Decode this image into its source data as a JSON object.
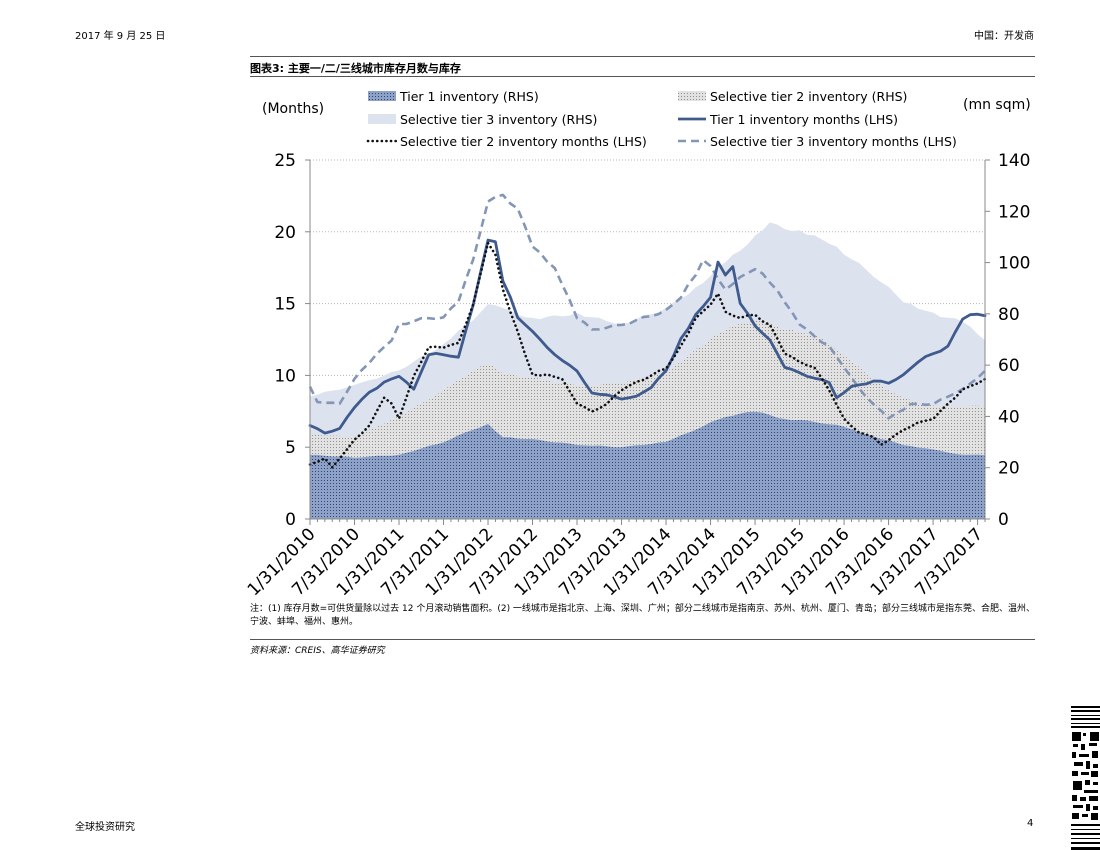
{
  "header": {
    "date": "2017 年 9 月 25 日",
    "section": "中国：开发商"
  },
  "figure_title": "图表3: 主要一/二/三线城市库存月数与库存",
  "chart_data": {
    "type": "line",
    "title": "主要一/二/三线城市库存月数与库存",
    "ylabel_left": "(Months)",
    "ylabel_right": "(mn sqm)",
    "ylim_left": [
      0,
      25
    ],
    "ylim_right": [
      0,
      140
    ],
    "yticks_left": [
      "25",
      "20",
      "15",
      "10",
      "5",
      "0"
    ],
    "yticks_right": [
      "140",
      "120",
      "100",
      "80",
      "60",
      "40",
      "20",
      "0"
    ],
    "x_start": "2010-01",
    "x_end": "2017-08",
    "xtick_labels": [
      "1/31/2010",
      "7/31/2010",
      "1/31/2011",
      "7/31/2011",
      "1/31/2012",
      "7/31/2012",
      "1/31/2013",
      "7/31/2013",
      "1/31/2014",
      "7/31/2014",
      "1/31/2015",
      "7/31/2015",
      "1/31/2016",
      "7/31/2016",
      "1/31/2017",
      "7/31/2017"
    ],
    "legend": [
      {
        "key": "t1inv",
        "label": "Tier 1 inventory (RHS)"
      },
      {
        "key": "t2inv",
        "label": "Selective tier 2 inventory (RHS)"
      },
      {
        "key": "t3inv",
        "label": "Selective tier 3 inventory (RHS)"
      },
      {
        "key": "t1m",
        "label": "Tier 1 inventory months (LHS)"
      },
      {
        "key": "t2m",
        "label": "Selective tier 2 inventory months (LHS)"
      },
      {
        "key": "t3m",
        "label": "Selective tier 3 inventory months (LHS)"
      }
    ],
    "series": [
      {
        "key": "t3inv",
        "name": "Selective tier 3 inventory (RHS)",
        "axis": "right",
        "style": "area",
        "color": "#dde2ef",
        "values": [
          [
            0,
            48
          ],
          [
            6,
            52
          ],
          [
            12,
            58
          ],
          [
            18,
            68
          ],
          [
            22,
            78
          ],
          [
            24,
            84
          ],
          [
            26,
            82
          ],
          [
            30,
            78
          ],
          [
            36,
            80
          ],
          [
            42,
            76
          ],
          [
            48,
            82
          ],
          [
            52,
            90
          ],
          [
            56,
            100
          ],
          [
            60,
            110
          ],
          [
            62,
            115
          ],
          [
            66,
            112
          ],
          [
            70,
            108
          ],
          [
            76,
            95
          ],
          [
            80,
            85
          ],
          [
            84,
            80
          ],
          [
            88,
            77
          ],
          [
            91,
            70
          ]
        ]
      },
      {
        "key": "t2inv",
        "name": "Selective tier 2 inventory (RHS)",
        "axis": "right",
        "style": "area",
        "color": "#c8c8c8",
        "values": [
          [
            0,
            33
          ],
          [
            6,
            32
          ],
          [
            12,
            40
          ],
          [
            18,
            50
          ],
          [
            22,
            58
          ],
          [
            24,
            61
          ],
          [
            26,
            57
          ],
          [
            30,
            55
          ],
          [
            36,
            52
          ],
          [
            42,
            53
          ],
          [
            48,
            57
          ],
          [
            52,
            66
          ],
          [
            56,
            74
          ],
          [
            60,
            78
          ],
          [
            64,
            74
          ],
          [
            68,
            72
          ],
          [
            72,
            64
          ],
          [
            76,
            54
          ],
          [
            80,
            47
          ],
          [
            84,
            44
          ],
          [
            88,
            44
          ],
          [
            91,
            44
          ]
        ]
      },
      {
        "key": "t1inv",
        "name": "Tier 1 inventory (RHS)",
        "axis": "right",
        "style": "area",
        "color": "#7f95bd",
        "values": [
          [
            0,
            25
          ],
          [
            6,
            24
          ],
          [
            12,
            25
          ],
          [
            18,
            30
          ],
          [
            22,
            35
          ],
          [
            24,
            37
          ],
          [
            26,
            32
          ],
          [
            30,
            31
          ],
          [
            36,
            29
          ],
          [
            42,
            28
          ],
          [
            48,
            30
          ],
          [
            52,
            35
          ],
          [
            56,
            40
          ],
          [
            60,
            42
          ],
          [
            64,
            39
          ],
          [
            68,
            38
          ],
          [
            72,
            36
          ],
          [
            76,
            32
          ],
          [
            80,
            29
          ],
          [
            84,
            27
          ],
          [
            88,
            25
          ],
          [
            91,
            25
          ]
        ]
      },
      {
        "key": "t3m",
        "name": "Selective tier 3 inventory months (LHS)",
        "axis": "left",
        "style": "dashed",
        "color": "#8496b6",
        "values": [
          [
            0,
            9.2
          ],
          [
            1,
            8.2
          ],
          [
            4,
            8
          ],
          [
            6,
            9.8
          ],
          [
            9,
            11.5
          ],
          [
            11,
            12.5
          ],
          [
            12,
            13.5
          ],
          [
            14,
            13.8
          ],
          [
            16,
            14
          ],
          [
            18,
            14
          ],
          [
            20,
            15.2
          ],
          [
            22,
            18
          ],
          [
            24,
            22
          ],
          [
            26,
            22.6
          ],
          [
            28,
            21.5
          ],
          [
            30,
            19
          ],
          [
            33,
            17.5
          ],
          [
            36,
            14
          ],
          [
            38,
            13.2
          ],
          [
            42,
            13.5
          ],
          [
            48,
            14.5
          ],
          [
            50,
            15.5
          ],
          [
            52,
            17
          ],
          [
            53,
            18
          ],
          [
            54,
            17.6
          ],
          [
            56,
            16
          ],
          [
            60,
            17.5
          ],
          [
            63,
            16
          ],
          [
            66,
            13.5
          ],
          [
            70,
            12
          ],
          [
            72,
            10.5
          ],
          [
            75,
            8.5
          ],
          [
            78,
            7
          ],
          [
            81,
            8
          ],
          [
            84,
            8
          ],
          [
            87,
            8.8
          ],
          [
            88,
            9
          ],
          [
            91,
            10.3
          ]
        ]
      },
      {
        "key": "t1m",
        "name": "Tier 1 inventory months (LHS)",
        "axis": "left",
        "style": "solid",
        "color": "#3f5b8e",
        "values": [
          [
            0,
            6.5
          ],
          [
            2,
            6
          ],
          [
            4,
            6.3
          ],
          [
            6,
            7.8
          ],
          [
            8,
            8.8
          ],
          [
            10,
            9.5
          ],
          [
            12,
            10
          ],
          [
            14,
            9
          ],
          [
            16,
            11.5
          ],
          [
            18,
            11.5
          ],
          [
            20,
            11.2
          ],
          [
            22,
            15
          ],
          [
            24,
            19.5
          ],
          [
            25,
            19.4
          ],
          [
            26,
            16.5
          ],
          [
            27,
            15.5
          ],
          [
            28,
            14
          ],
          [
            30,
            13
          ],
          [
            32,
            12
          ],
          [
            34,
            11
          ],
          [
            36,
            10.3
          ],
          [
            38,
            8.8
          ],
          [
            40,
            8.6
          ],
          [
            42,
            8.4
          ],
          [
            44,
            8.5
          ],
          [
            46,
            9.2
          ],
          [
            48,
            10.3
          ],
          [
            50,
            12.5
          ],
          [
            52,
            14.2
          ],
          [
            54,
            15.5
          ],
          [
            55,
            17.8
          ],
          [
            56,
            17
          ],
          [
            57,
            17.5
          ],
          [
            58,
            15
          ],
          [
            60,
            13.5
          ],
          [
            62,
            12.5
          ],
          [
            64,
            10.5
          ],
          [
            66,
            10.2
          ],
          [
            68,
            9.8
          ],
          [
            70,
            9.5
          ],
          [
            71,
            8.5
          ],
          [
            73,
            9.2
          ],
          [
            76,
            9.6
          ],
          [
            78,
            9.5
          ],
          [
            80,
            10
          ],
          [
            82,
            11
          ],
          [
            84,
            11.5
          ],
          [
            86,
            12
          ],
          [
            88,
            14
          ],
          [
            90,
            14.3
          ],
          [
            91,
            14.2
          ]
        ]
      },
      {
        "key": "t2m",
        "name": "Selective tier 2 inventory months (LHS)",
        "axis": "left",
        "style": "dotted",
        "color": "#111111",
        "values": [
          [
            0,
            3.8
          ],
          [
            2,
            4.2
          ],
          [
            3,
            3.6
          ],
          [
            6,
            5.5
          ],
          [
            8,
            6.5
          ],
          [
            10,
            8.5
          ],
          [
            11,
            8
          ],
          [
            12,
            7
          ],
          [
            14,
            10
          ],
          [
            16,
            12
          ],
          [
            18,
            12
          ],
          [
            20,
            12.2
          ],
          [
            22,
            15
          ],
          [
            24,
            19.3
          ],
          [
            25,
            18.5
          ],
          [
            26,
            16
          ],
          [
            28,
            13
          ],
          [
            30,
            10
          ],
          [
            32,
            10
          ],
          [
            34,
            9.8
          ],
          [
            36,
            8
          ],
          [
            38,
            7.5
          ],
          [
            40,
            8
          ],
          [
            42,
            9
          ],
          [
            44,
            9.5
          ],
          [
            46,
            10
          ],
          [
            48,
            10.5
          ],
          [
            50,
            12
          ],
          [
            52,
            14
          ],
          [
            54,
            15
          ],
          [
            55,
            15.6
          ],
          [
            56,
            14.5
          ],
          [
            58,
            14
          ],
          [
            60,
            14.2
          ],
          [
            62,
            13.5
          ],
          [
            64,
            11.5
          ],
          [
            66,
            11
          ],
          [
            68,
            10.5
          ],
          [
            70,
            9
          ],
          [
            72,
            7
          ],
          [
            74,
            6
          ],
          [
            76,
            5.7
          ],
          [
            77,
            5.2
          ],
          [
            78,
            5.5
          ],
          [
            80,
            6.2
          ],
          [
            82,
            6.7
          ],
          [
            84,
            7
          ],
          [
            86,
            8
          ],
          [
            88,
            9
          ],
          [
            90,
            9.5
          ],
          [
            91,
            9.7
          ]
        ]
      }
    ]
  },
  "note": "注：(1) 库存月数=可供货量除以过去 12 个月滚动销售面积。(2) 一线城市是指北京、上海、深圳、广州；部分二线城市是指南京、苏州、杭州、厦门、青岛；部分三线城市是指东莞、合肥、温州、宁波、蚌埠、福州、惠州。",
  "source": "资料来源：CREIS、高华证券研究",
  "footer": {
    "left": "全球投资研究",
    "page": "4"
  }
}
